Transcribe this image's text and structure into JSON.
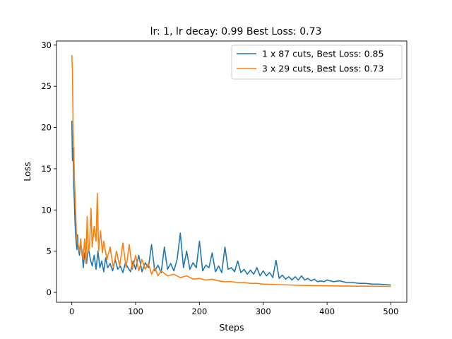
{
  "chart_data": {
    "type": "line",
    "title": "lr: 1, lr decay: 0.99 Best Loss: 0.73",
    "xlabel": "Steps",
    "ylabel": "Loss",
    "xlim": [
      -24,
      525
    ],
    "ylim": [
      -1.2,
      30.5
    ],
    "xticks": [
      0,
      100,
      200,
      300,
      400,
      500
    ],
    "yticks": [
      0,
      5,
      10,
      15,
      20,
      25,
      30
    ],
    "grid": false,
    "legend_position": "top-right",
    "series": [
      {
        "name": "1 x 87 cuts, Best Loss: 0.85",
        "color": "#1f77b4",
        "x": [
          0,
          1,
          2,
          3,
          4,
          5,
          6,
          7,
          8,
          9,
          10,
          12,
          14,
          16,
          18,
          20,
          23,
          26,
          29,
          32,
          35,
          38,
          41,
          44,
          47,
          50,
          53,
          56,
          60,
          64,
          68,
          72,
          76,
          80,
          84,
          88,
          92,
          96,
          100,
          105,
          110,
          115,
          120,
          125,
          130,
          135,
          140,
          145,
          150,
          155,
          160,
          165,
          170,
          175,
          180,
          185,
          190,
          195,
          200,
          205,
          210,
          215,
          220,
          225,
          230,
          235,
          240,
          245,
          250,
          255,
          260,
          265,
          270,
          275,
          280,
          285,
          290,
          295,
          300,
          305,
          310,
          315,
          320,
          325,
          330,
          335,
          340,
          345,
          350,
          355,
          360,
          365,
          370,
          375,
          380,
          385,
          390,
          395,
          400,
          410,
          420,
          430,
          440,
          450,
          460,
          470,
          480,
          490,
          500
        ],
        "y": [
          20.8,
          16.0,
          17.5,
          13.0,
          11.0,
          8.5,
          7.0,
          6.0,
          5.2,
          7.0,
          5.5,
          4.5,
          6.0,
          5.0,
          3.0,
          4.8,
          3.5,
          5.5,
          4.0,
          3.2,
          4.5,
          2.8,
          5.0,
          3.0,
          3.8,
          2.5,
          4.2,
          3.0,
          3.5,
          2.6,
          4.0,
          2.8,
          3.2,
          2.4,
          3.6,
          3.0,
          2.5,
          3.8,
          2.8,
          4.5,
          2.5,
          3.6,
          3.0,
          5.8,
          2.6,
          3.3,
          2.4,
          5.5,
          2.8,
          3.5,
          2.6,
          4.0,
          7.2,
          3.0,
          5.0,
          2.8,
          3.6,
          3.0,
          6.2,
          2.6,
          3.3,
          3.0,
          4.8,
          2.5,
          3.2,
          2.4,
          5.5,
          2.8,
          3.0,
          2.5,
          3.8,
          2.4,
          2.8,
          2.2,
          2.7,
          2.2,
          3.0,
          2.0,
          2.6,
          2.0,
          2.4,
          1.8,
          3.9,
          1.7,
          2.1,
          1.6,
          1.9,
          1.5,
          1.9,
          1.5,
          2.0,
          1.5,
          1.7,
          1.4,
          1.6,
          1.3,
          1.4,
          1.3,
          1.5,
          1.3,
          1.4,
          1.2,
          1.2,
          1.1,
          1.1,
          1.0,
          1.0,
          0.95,
          0.9
        ]
      },
      {
        "name": "3 x 29 cuts, Best Loss: 0.73",
        "color": "#ff7f0e",
        "x": [
          0,
          1,
          2,
          3,
          4,
          5,
          6,
          7,
          8,
          9,
          10,
          12,
          14,
          16,
          18,
          20,
          22,
          24,
          26,
          28,
          30,
          32,
          35,
          38,
          40,
          42,
          45,
          48,
          50,
          55,
          60,
          65,
          70,
          75,
          80,
          85,
          90,
          95,
          100,
          105,
          110,
          115,
          120,
          125,
          130,
          135,
          140,
          150,
          160,
          170,
          180,
          190,
          200,
          210,
          220,
          230,
          240,
          250,
          260,
          270,
          280,
          290,
          300,
          320,
          340,
          360,
          380,
          400,
          420,
          440,
          460,
          480,
          500
        ],
        "y": [
          28.8,
          27.0,
          20.0,
          17.5,
          14.0,
          12.0,
          10.0,
          7.5,
          6.5,
          6.0,
          5.8,
          5.0,
          6.5,
          4.5,
          4.0,
          6.5,
          3.5,
          9.2,
          4.8,
          6.0,
          10.2,
          5.5,
          8.0,
          6.2,
          12.0,
          5.0,
          7.5,
          4.8,
          6.2,
          4.0,
          5.5,
          3.0,
          5.0,
          3.2,
          6.0,
          3.0,
          5.8,
          2.8,
          4.5,
          2.6,
          4.0,
          2.8,
          3.5,
          2.2,
          3.0,
          2.0,
          2.6,
          2.0,
          2.2,
          1.8,
          2.0,
          1.6,
          1.7,
          1.5,
          1.6,
          1.4,
          1.3,
          1.3,
          1.2,
          1.2,
          1.1,
          1.1,
          1.0,
          0.95,
          0.9,
          0.85,
          0.82,
          0.8,
          0.78,
          0.76,
          0.75,
          0.74,
          0.73
        ]
      }
    ]
  }
}
